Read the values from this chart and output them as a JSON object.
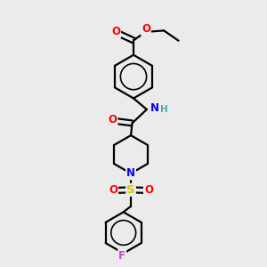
{
  "bg_color": "#ebebeb",
  "bond_color": "#000000",
  "bond_width": 1.6,
  "atom_colors": {
    "O": "#ff0000",
    "N": "#0000ff",
    "S": "#cccc00",
    "F": "#cc44cc",
    "H": "#44aaaa"
  },
  "font_size": 8.5,
  "fig_width": 3.0,
  "fig_height": 3.0,
  "dpi": 100,
  "xlim": [
    0,
    10
  ],
  "ylim": [
    0,
    10
  ]
}
